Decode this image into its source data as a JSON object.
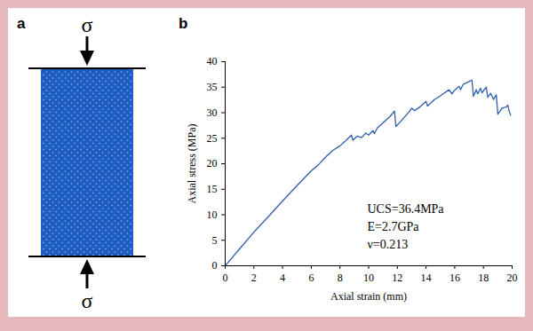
{
  "figure": {
    "panel_labels": [
      "a",
      "b"
    ],
    "load_labels": [
      "σ",
      "σ"
    ]
  },
  "chart_data": {
    "type": "line",
    "x_label": "Axial strain (mm)",
    "y_label": "Axial stress (MPa)",
    "annotations": [
      "UCS=36.4MPa",
      "E=2.7GPa",
      "ν=0.213"
    ],
    "color": "#2e5fab",
    "xlim": [
      0,
      20
    ],
    "xticks": [
      0,
      2,
      4,
      6,
      8,
      10,
      12,
      14,
      16,
      18,
      20
    ],
    "ylim": [
      0,
      40
    ],
    "yticks": [
      0,
      5,
      10,
      15,
      20,
      25,
      30,
      35,
      40
    ],
    "grid": false,
    "x": [
      0,
      1,
      2,
      3,
      4,
      5,
      6,
      6.5,
      7,
      7.5,
      8,
      8.5,
      8.8,
      8.9,
      9.2,
      9.5,
      9.8,
      10,
      10.3,
      10.4,
      10.6,
      11,
      11.5,
      11.8,
      11.9,
      12.3,
      12.8,
      13.0,
      13.2,
      13.6,
      14.0,
      14.1,
      14.6,
      15.0,
      15.3,
      15.6,
      15.8,
      16.0,
      16.3,
      16.4,
      16.6,
      17.0,
      17.2,
      17.3,
      17.5,
      17.6,
      17.8,
      17.9,
      18.0,
      18.2,
      18.3,
      18.5,
      18.7,
      18.9,
      19.0,
      19.3,
      19.6,
      19.7,
      19.8,
      19.9
    ],
    "values": [
      0,
      3.3,
      6.6,
      9.6,
      12.7,
      15.7,
      18.6,
      19.8,
      21.3,
      22.6,
      23.5,
      24.8,
      25.6,
      24.6,
      25.4,
      25.1,
      26.0,
      25.6,
      26.5,
      25.9,
      27.0,
      28.0,
      29.3,
      30.3,
      27.3,
      28.5,
      30.1,
      30.9,
      30.4,
      31.2,
      32.2,
      31.3,
      32.6,
      33.3,
      33.9,
      34.5,
      33.7,
      34.4,
      35.2,
      34.5,
      35.6,
      36.1,
      36.4,
      33.2,
      34.5,
      33.7,
      34.8,
      33.9,
      34.3,
      35.0,
      33.0,
      33.8,
      32.6,
      33.5,
      29.7,
      30.9,
      31.1,
      31.5,
      30.2,
      29.5
    ]
  }
}
